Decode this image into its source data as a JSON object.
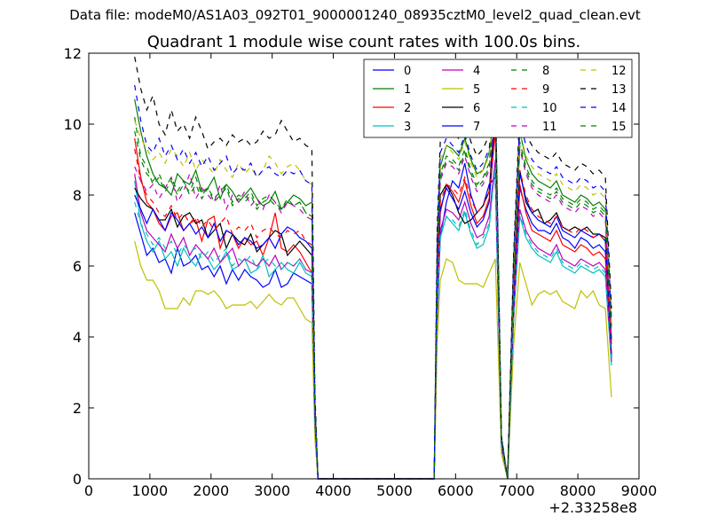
{
  "supertitle": "Data file: modeM0/AS1A03_092T01_9000001240_08935cztM0_level2_quad_clean.evt",
  "chart_data": {
    "type": "line",
    "title": "Quadrant 1 module wise count rates with 100.0s bins.",
    "xlabel": "",
    "ylabel": "",
    "x_offset_label": "+2.33258e8",
    "xlim": [
      0,
      9000
    ],
    "ylim": [
      0,
      12
    ],
    "xticks": [
      0,
      1000,
      2000,
      3000,
      4000,
      5000,
      6000,
      7000,
      8000,
      9000
    ],
    "yticks": [
      0,
      2,
      4,
      6,
      8,
      10,
      12
    ],
    "legend_position": "upper right",
    "legend_columns": 4,
    "x": [
      750,
      850,
      950,
      1050,
      1150,
      1250,
      1350,
      1450,
      1550,
      1650,
      1750,
      1850,
      1950,
      2050,
      2150,
      2250,
      2350,
      2450,
      2550,
      2650,
      2750,
      2850,
      2950,
      3050,
      3150,
      3250,
      3350,
      3450,
      3550,
      3650,
      3700,
      3750,
      5650,
      5700,
      5750,
      5850,
      5950,
      6050,
      6150,
      6250,
      6350,
      6450,
      6550,
      6650,
      6750,
      6850,
      6950,
      7050,
      7150,
      7250,
      7350,
      7450,
      7550,
      7650,
      7750,
      7850,
      7950,
      8050,
      8150,
      8250,
      8350,
      8450,
      8550
    ],
    "series": [
      {
        "name": "0",
        "color": "#0000ff",
        "dash": "solid",
        "values": [
          7.5,
          6.9,
          6.3,
          6.5,
          6.1,
          6.2,
          5.8,
          6.5,
          6.0,
          6.1,
          6.3,
          5.9,
          6.0,
          5.7,
          6.0,
          5.5,
          5.9,
          5.6,
          5.9,
          5.7,
          5.6,
          5.4,
          5.5,
          5.9,
          5.4,
          5.5,
          5.8,
          5.7,
          5.6,
          5.5,
          1.5,
          0.0,
          0.0,
          4.5,
          6.8,
          7.8,
          8.4,
          8.2,
          8.9,
          8.0,
          7.5,
          7.7,
          8.3,
          8.5,
          1.0,
          0.0,
          4.8,
          8.2,
          7.6,
          7.2,
          7.0,
          7.0,
          6.9,
          7.2,
          6.8,
          6.7,
          6.5,
          6.8,
          6.7,
          6.5,
          6.6,
          6.4,
          3.4
        ]
      },
      {
        "name": "1",
        "color": "#008000",
        "dash": "solid",
        "values": [
          10.7,
          9.8,
          9.1,
          8.6,
          8.3,
          8.2,
          8.0,
          8.6,
          8.4,
          8.3,
          8.7,
          8.1,
          8.2,
          8.5,
          7.9,
          8.3,
          8.1,
          7.8,
          8.0,
          8.2,
          7.9,
          7.7,
          7.8,
          8.1,
          7.6,
          7.8,
          8.0,
          7.9,
          7.7,
          7.8,
          2.0,
          0.0,
          0.0,
          6.3,
          8.8,
          9.4,
          9.3,
          9.1,
          9.6,
          9.0,
          8.6,
          8.7,
          9.2,
          10.5,
          1.1,
          0.0,
          5.5,
          9.8,
          9.0,
          8.6,
          8.4,
          8.3,
          8.2,
          8.4,
          8.0,
          7.9,
          7.8,
          8.0,
          7.9,
          7.7,
          7.8,
          7.6,
          4.3
        ]
      },
      {
        "name": "2",
        "color": "#ff0000",
        "dash": "solid",
        "values": [
          9.6,
          8.5,
          7.8,
          7.6,
          7.2,
          7.0,
          7.4,
          7.5,
          7.0,
          7.2,
          7.3,
          6.7,
          7.3,
          7.4,
          6.5,
          7.0,
          6.9,
          6.5,
          6.8,
          6.6,
          6.7,
          6.3,
          6.8,
          7.5,
          6.5,
          6.4,
          6.6,
          6.4,
          6.1,
          5.8,
          1.6,
          0.0,
          0.0,
          5.2,
          7.5,
          8.3,
          8.1,
          7.8,
          8.4,
          7.7,
          7.2,
          7.4,
          7.9,
          9.8,
          0.9,
          0.0,
          5.0,
          8.3,
          7.5,
          7.0,
          6.9,
          6.8,
          6.7,
          7.0,
          6.6,
          6.5,
          6.4,
          6.6,
          6.5,
          6.3,
          6.4,
          6.2,
          3.8
        ]
      },
      {
        "name": "3",
        "color": "#00bfbf",
        "dash": "solid",
        "values": [
          8.4,
          7.2,
          6.7,
          6.4,
          6.7,
          6.2,
          6.4,
          6.0,
          6.5,
          6.2,
          6.0,
          6.4,
          6.2,
          5.9,
          6.1,
          6.4,
          5.9,
          6.0,
          6.2,
          5.8,
          5.9,
          6.3,
          5.7,
          5.9,
          6.1,
          5.9,
          5.8,
          6.1,
          5.8,
          5.7,
          1.4,
          0.0,
          0.0,
          4.8,
          6.8,
          7.4,
          7.2,
          7.0,
          7.5,
          6.9,
          6.5,
          6.6,
          7.1,
          8.9,
          0.9,
          0.0,
          4.5,
          7.4,
          6.8,
          6.5,
          6.3,
          6.2,
          6.1,
          6.4,
          6.0,
          5.9,
          5.8,
          6.0,
          5.9,
          5.8,
          5.9,
          5.7,
          3.2
        ]
      },
      {
        "name": "4",
        "color": "#bf00bf",
        "dash": "solid",
        "values": [
          8.6,
          7.5,
          7.0,
          6.8,
          6.6,
          6.4,
          6.9,
          6.5,
          6.8,
          6.3,
          6.6,
          6.4,
          6.2,
          6.5,
          6.1,
          6.3,
          6.5,
          6.0,
          6.2,
          6.1,
          6.0,
          6.2,
          6.0,
          6.3,
          5.9,
          6.1,
          6.0,
          6.2,
          5.9,
          5.8,
          1.5,
          0.0,
          0.0,
          5.0,
          7.0,
          7.6,
          7.5,
          7.3,
          7.8,
          7.2,
          6.8,
          6.9,
          7.4,
          9.0,
          0.9,
          0.0,
          4.6,
          7.6,
          7.0,
          6.7,
          6.5,
          6.4,
          6.3,
          6.6,
          6.2,
          6.1,
          6.0,
          6.2,
          6.1,
          6.0,
          6.1,
          5.9,
          3.3
        ]
      },
      {
        "name": "5",
        "color": "#bfbf00",
        "dash": "solid",
        "values": [
          6.7,
          6.0,
          5.6,
          5.6,
          5.3,
          4.8,
          4.8,
          4.8,
          5.1,
          4.9,
          5.3,
          5.3,
          5.2,
          5.3,
          5.1,
          4.8,
          4.9,
          4.9,
          4.9,
          5.0,
          4.8,
          5.0,
          5.2,
          5.0,
          4.9,
          5.1,
          5.1,
          4.8,
          4.5,
          4.4,
          1.1,
          0.0,
          0.0,
          3.9,
          5.6,
          6.2,
          6.1,
          5.6,
          5.5,
          5.5,
          5.5,
          5.4,
          5.8,
          6.2,
          0.7,
          0.0,
          3.8,
          6.1,
          5.5,
          4.9,
          5.2,
          5.3,
          5.2,
          5.3,
          5.0,
          4.9,
          4.8,
          5.3,
          5.1,
          5.3,
          4.9,
          4.8,
          2.3
        ]
      },
      {
        "name": "6",
        "color": "#000000",
        "dash": "solid",
        "values": [
          8.2,
          7.9,
          7.7,
          7.6,
          7.3,
          7.3,
          7.6,
          7.1,
          7.4,
          7.5,
          7.2,
          7.3,
          6.8,
          7.0,
          7.2,
          6.5,
          6.9,
          6.7,
          6.6,
          6.9,
          6.4,
          6.6,
          6.8,
          7.0,
          6.9,
          6.3,
          6.5,
          6.7,
          6.5,
          6.3,
          1.7,
          0.0,
          0.0,
          5.6,
          8.0,
          8.3,
          8.0,
          7.5,
          7.2,
          7.3,
          7.5,
          7.7,
          8.1,
          10.5,
          1.0,
          0.0,
          5.2,
          8.7,
          7.8,
          7.5,
          7.6,
          7.2,
          7.3,
          7.5,
          7.1,
          7.0,
          7.1,
          7.0,
          7.1,
          6.9,
          6.9,
          6.8,
          3.9
        ]
      },
      {
        "name": "7",
        "color": "#0000ff",
        "dash": "solid",
        "values": [
          8.0,
          7.6,
          7.2,
          7.6,
          7.3,
          7.0,
          7.5,
          7.3,
          7.0,
          7.2,
          6.9,
          7.1,
          6.8,
          7.2,
          6.7,
          7.0,
          6.9,
          6.6,
          6.8,
          6.7,
          6.5,
          6.6,
          6.8,
          6.5,
          6.9,
          7.1,
          7.0,
          6.8,
          6.7,
          6.5,
          1.6,
          0.0,
          0.0,
          5.3,
          7.6,
          8.2,
          7.9,
          7.6,
          8.1,
          7.5,
          7.1,
          7.3,
          7.8,
          10.2,
          1.0,
          0.0,
          5.0,
          8.6,
          7.9,
          7.5,
          7.3,
          7.2,
          7.1,
          7.4,
          7.0,
          6.9,
          6.8,
          7.0,
          6.9,
          6.8,
          6.9,
          6.7,
          3.5
        ]
      },
      {
        "name": "8",
        "color": "#008000",
        "dash": "dashed",
        "values": [
          10.2,
          9.1,
          8.8,
          8.3,
          8.5,
          8.1,
          8.4,
          8.0,
          8.3,
          8.1,
          8.5,
          8.0,
          8.2,
          7.9,
          8.1,
          8.3,
          7.8,
          8.0,
          7.9,
          8.1,
          7.7,
          7.9,
          8.0,
          7.8,
          7.6,
          7.9,
          7.7,
          7.8,
          7.5,
          7.4,
          1.9,
          0.0,
          0.0,
          6.0,
          8.5,
          9.0,
          8.9,
          8.7,
          9.2,
          8.6,
          8.2,
          8.4,
          8.8,
          10.4,
          1.1,
          0.0,
          5.6,
          9.4,
          8.7,
          8.3,
          8.1,
          8.0,
          7.9,
          8.1,
          7.8,
          7.7,
          7.6,
          7.8,
          7.7,
          7.5,
          7.6,
          7.4,
          4.0
        ]
      },
      {
        "name": "9",
        "color": "#ff0000",
        "dash": "dashed",
        "values": [
          9.3,
          8.4,
          8.0,
          7.8,
          7.5,
          7.4,
          7.7,
          7.3,
          7.5,
          7.2,
          7.4,
          7.1,
          7.3,
          7.0,
          7.2,
          7.4,
          6.9,
          7.1,
          7.0,
          7.2,
          6.8,
          7.0,
          7.1,
          6.9,
          6.8,
          7.0,
          6.9,
          7.0,
          6.7,
          6.6,
          1.7,
          0.0,
          0.0,
          5.5,
          7.8,
          8.3,
          8.2,
          8.0,
          8.5,
          7.9,
          7.5,
          7.7,
          8.1,
          9.9,
          1.0,
          0.0,
          5.1,
          8.7,
          8.0,
          7.6,
          7.4,
          7.3,
          7.2,
          7.4,
          7.1,
          7.0,
          6.9,
          7.1,
          7.0,
          6.8,
          6.9,
          6.7,
          3.6
        ]
      },
      {
        "name": "10",
        "color": "#00bfbf",
        "dash": "dashed",
        "values": [
          7.8,
          7.2,
          6.9,
          6.6,
          6.8,
          6.5,
          6.7,
          6.3,
          6.6,
          6.4,
          6.5,
          6.2,
          6.4,
          6.1,
          6.3,
          6.5,
          6.0,
          6.2,
          6.1,
          6.3,
          5.9,
          6.1,
          6.2,
          6.0,
          5.9,
          6.1,
          6.0,
          6.2,
          5.9,
          5.8,
          1.5,
          0.0,
          0.0,
          5.0,
          6.9,
          7.4,
          7.3,
          7.1,
          7.6,
          7.0,
          6.6,
          6.8,
          7.2,
          8.8,
          0.9,
          0.0,
          4.6,
          7.5,
          6.9,
          6.6,
          6.4,
          6.3,
          6.2,
          6.5,
          6.1,
          6.0,
          5.9,
          6.1,
          6.0,
          5.9,
          6.0,
          5.8,
          3.2
        ]
      },
      {
        "name": "11",
        "color": "#bf00bf",
        "dash": "dashed",
        "values": [
          8.8,
          8.4,
          8.1,
          8.3,
          7.9,
          8.2,
          8.5,
          7.8,
          8.1,
          8.6,
          7.9,
          8.2,
          8.0,
          7.8,
          8.3,
          7.6,
          8.0,
          7.8,
          8.1,
          7.7,
          7.9,
          7.6,
          8.0,
          7.8,
          7.5,
          7.8,
          7.7,
          7.6,
          7.4,
          7.3,
          1.9,
          0.0,
          0.0,
          5.9,
          8.4,
          8.9,
          8.8,
          8.6,
          9.1,
          8.5,
          8.1,
          8.3,
          8.7,
          10.3,
          1.1,
          0.0,
          5.5,
          9.3,
          8.6,
          8.2,
          8.0,
          7.9,
          7.8,
          8.0,
          7.7,
          7.6,
          7.5,
          7.7,
          7.6,
          7.4,
          7.5,
          7.3,
          3.9
        ]
      },
      {
        "name": "12",
        "color": "#bfbf00",
        "dash": "dashed",
        "values": [
          10.1,
          9.6,
          9.3,
          9.0,
          9.2,
          8.9,
          9.3,
          9.1,
          8.8,
          9.2,
          8.7,
          9.0,
          8.8,
          8.6,
          9.0,
          8.7,
          8.5,
          8.9,
          8.6,
          8.8,
          8.5,
          8.7,
          9.1,
          8.9,
          8.6,
          8.8,
          8.9,
          8.7,
          8.4,
          8.3,
          2.1,
          0.0,
          0.0,
          6.6,
          9.0,
          9.4,
          9.2,
          9.0,
          9.5,
          8.9,
          8.5,
          8.7,
          9.1,
          10.7,
          1.2,
          0.0,
          6.0,
          9.8,
          9.1,
          8.8,
          8.6,
          8.5,
          8.4,
          8.6,
          8.3,
          8.2,
          8.1,
          8.3,
          8.2,
          8.0,
          8.1,
          7.9,
          4.4
        ]
      },
      {
        "name": "13",
        "color": "#000000",
        "dash": "dashed",
        "values": [
          11.9,
          11.0,
          10.4,
          10.8,
          10.0,
          9.7,
          10.4,
          9.8,
          10.0,
          9.6,
          10.2,
          9.8,
          9.3,
          9.5,
          9.6,
          9.4,
          9.7,
          9.5,
          9.6,
          9.4,
          9.5,
          9.8,
          9.6,
          9.7,
          10.1,
          9.8,
          9.5,
          9.6,
          9.4,
          9.3,
          2.4,
          0.0,
          0.0,
          7.2,
          9.5,
          9.9,
          9.8,
          9.6,
          10.1,
          9.5,
          9.1,
          9.3,
          9.7,
          11.0,
          1.2,
          0.0,
          6.4,
          10.4,
          9.7,
          9.4,
          9.2,
          9.1,
          9.0,
          9.2,
          8.9,
          8.8,
          8.7,
          8.9,
          8.8,
          8.6,
          8.7,
          8.5,
          4.8
        ]
      },
      {
        "name": "14",
        "color": "#0000ff",
        "dash": "dashed",
        "values": [
          11.1,
          10.1,
          9.4,
          9.2,
          9.6,
          9.1,
          9.4,
          9.0,
          9.3,
          8.9,
          9.2,
          8.8,
          9.1,
          8.7,
          8.9,
          9.1,
          8.6,
          8.8,
          8.7,
          8.9,
          8.5,
          8.7,
          8.8,
          8.6,
          8.5,
          8.7,
          8.6,
          8.7,
          8.4,
          8.3,
          2.1,
          0.0,
          0.0,
          6.8,
          9.2,
          9.6,
          9.4,
          9.2,
          9.7,
          9.1,
          8.7,
          8.9,
          9.3,
          11.2,
          1.2,
          0.0,
          6.2,
          10.1,
          9.4,
          9.0,
          8.8,
          8.7,
          8.6,
          8.8,
          8.5,
          8.4,
          8.3,
          8.5,
          8.4,
          8.2,
          8.3,
          8.1,
          4.5
        ]
      },
      {
        "name": "15",
        "color": "#008000",
        "dash": "dashed",
        "values": [
          9.8,
          9.0,
          8.6,
          8.4,
          8.6,
          8.2,
          8.5,
          8.1,
          8.4,
          8.0,
          8.3,
          7.9,
          8.2,
          7.8,
          8.0,
          8.2,
          7.7,
          7.9,
          7.8,
          8.0,
          7.6,
          7.8,
          7.9,
          7.7,
          7.6,
          7.8,
          7.7,
          7.8,
          7.5,
          7.4,
          1.9,
          0.0,
          0.0,
          6.1,
          8.6,
          9.1,
          9.0,
          8.8,
          9.3,
          8.7,
          8.3,
          8.5,
          8.9,
          10.6,
          1.1,
          0.0,
          5.7,
          9.5,
          8.8,
          8.4,
          8.2,
          8.1,
          8.0,
          8.2,
          7.9,
          7.8,
          7.7,
          7.9,
          7.8,
          7.6,
          7.7,
          7.5,
          4.1
        ]
      }
    ]
  }
}
